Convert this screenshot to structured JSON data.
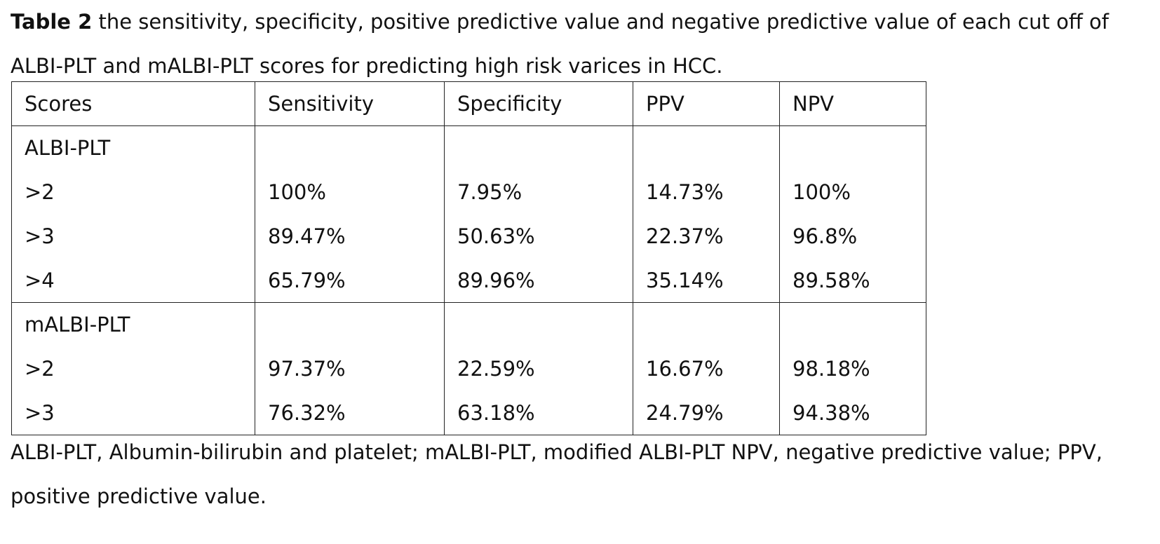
{
  "caption": {
    "label": "Table 2",
    "text": " the sensitivity, specificity, positive predictive value and negative predictive value of each cut off of ALBI-PLT and mALBI-PLT scores for predicting high risk varices in HCC."
  },
  "table": {
    "headers": [
      "Scores",
      "Sensitivity",
      "Specificity",
      "PPV",
      "NPV"
    ],
    "groups": [
      {
        "name": "ALBI-PLT",
        "rows": [
          [
            ">2",
            "100%",
            "7.95%",
            "14.73%",
            "100%"
          ],
          [
            ">3",
            "89.47%",
            "50.63%",
            "22.37%",
            "96.8%"
          ],
          [
            ">4",
            "65.79%",
            "89.96%",
            "35.14%",
            "89.58%"
          ]
        ]
      },
      {
        "name": "mALBI-PLT",
        "rows": [
          [
            ">2",
            "97.37%",
            "22.59%",
            "16.67%",
            "98.18%"
          ],
          [
            ">3",
            "76.32%",
            "63.18%",
            "24.79%",
            "94.38%"
          ]
        ]
      }
    ]
  },
  "footnote": "ALBI-PLT, Albumin-bilirubin and platelet; mALBI-PLT, modified ALBI-PLT NPV, negative predictive value; PPV, positive predictive value."
}
